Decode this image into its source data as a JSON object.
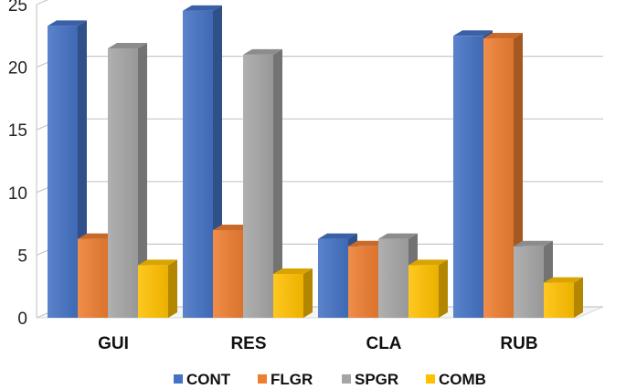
{
  "chart_data": {
    "type": "bar",
    "style": "3d-clustered-column",
    "categories": [
      "GUI",
      "RES",
      "CLA",
      "RUB"
    ],
    "series": [
      {
        "name": "CONT",
        "values": [
          23.3,
          24.5,
          6.3,
          22.5
        ],
        "color": "#4472C4"
      },
      {
        "name": "FLGR",
        "values": [
          6.3,
          7.0,
          5.7,
          22.3
        ],
        "color": "#ED7D31"
      },
      {
        "name": "SPGR",
        "values": [
          21.5,
          21.0,
          6.3,
          5.7
        ],
        "color": "#A5A5A5"
      },
      {
        "name": "COMB",
        "values": [
          4.2,
          3.5,
          4.2,
          2.8
        ],
        "color": "#FFC000"
      }
    ],
    "ylim": [
      0,
      25
    ],
    "yticks": [
      "0",
      "5",
      "10",
      "15",
      "20",
      "25"
    ],
    "grid": true,
    "legend_position": "bottom",
    "title": "",
    "xlabel": "",
    "ylabel": ""
  }
}
